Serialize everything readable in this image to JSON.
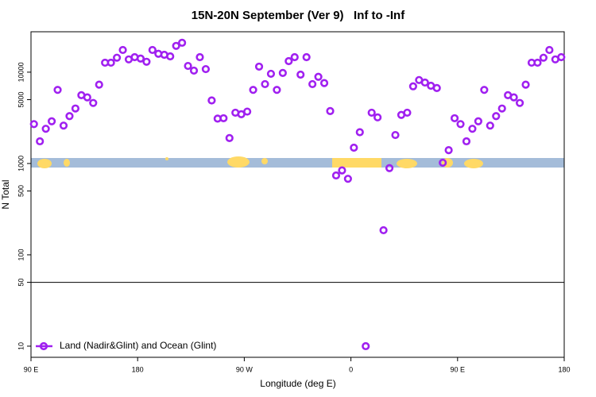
{
  "chart_data": {
    "type": "scatter",
    "title": "15N-20N September (Ver 9)   Inf to -Inf",
    "x_label": "Longitude (deg E)",
    "y_label": "N Total",
    "log_y": true,
    "xlim": [
      90,
      540
    ],
    "ylim": [
      7.55,
      27700
    ],
    "xticks": [
      {
        "value": 90,
        "label": "90 E"
      },
      180,
      {
        "value": 270,
        "label": "90 W"
      },
      {
        "value": 360,
        "label": "0"
      },
      {
        "value": 450,
        "label": "90 E"
      },
      {
        "value": 540,
        "label": "180"
      }
    ],
    "yticks": [
      10,
      50,
      100,
      500,
      1000,
      5000,
      10000
    ],
    "hline": 50,
    "legend": "bottom-left",
    "series": [
      {
        "name": "Land (Nadir&Glint) and Ocean (Glint)",
        "color": "#a020f0",
        "x": [
          92.5,
          97.5,
          102.5,
          107.5,
          112.5,
          117.5,
          122.5,
          127.5,
          132.5,
          137.5,
          142.5,
          147.5,
          152.5,
          157.5,
          162.5,
          167.5,
          172.5,
          177.5,
          182.5,
          187.5,
          192.5,
          197.5,
          202.5,
          207.5,
          212.5,
          217.5,
          222.5,
          227.5,
          232.5,
          237.5,
          242.5,
          247.5,
          252.5,
          257.5,
          262.5,
          267.5,
          272.5,
          277.5,
          282.5,
          287.5,
          292.5,
          297.5,
          302.5,
          307.5,
          312.5,
          317.5,
          322.5,
          327.5,
          332.5,
          337.5,
          342.5,
          347.5,
          352.5,
          357.5,
          362.5,
          367.5,
          372.5,
          377.5,
          382.5,
          387.5,
          392.5,
          397.5,
          402.5,
          407.5,
          412.5,
          417.5,
          422.5,
          427.5,
          432.5,
          437.5,
          442.5,
          447.5,
          452.5,
          457.5,
          462.5,
          467.5,
          472.5,
          477.5,
          482.5,
          487.5,
          492.5,
          497.5,
          502.5,
          507.5,
          512.5,
          517.5,
          522.5,
          527.5,
          532.5,
          537.5
        ],
        "values": [
          2700,
          1750,
          2400,
          2900,
          6400,
          2600,
          3300,
          4000,
          5600,
          5300,
          4600,
          7300,
          12700,
          12700,
          14400,
          17500,
          13800,
          14600,
          14100,
          13000,
          17500,
          15900,
          15500,
          14900,
          19400,
          21000,
          11700,
          10400,
          14600,
          10800,
          4900,
          3100,
          3130,
          1900,
          3600,
          3460,
          3700,
          6400,
          11500,
          7400,
          9600,
          6400,
          9800,
          13200,
          14600,
          9400,
          14600,
          7400,
          8900,
          7600,
          3750,
          740,
          840,
          680,
          1490,
          2200,
          10,
          3600,
          3200,
          186,
          890,
          2050,
          3400,
          3600,
          7000,
          8200,
          7700,
          7100,
          6700,
          1020,
          1400,
          3130,
          2700,
          1750,
          2400,
          2900,
          6400,
          2600,
          3300,
          4000,
          5600,
          5300,
          4600,
          7300,
          12700,
          12700,
          14400,
          17500,
          13800,
          14600
        ]
      }
    ]
  }
}
